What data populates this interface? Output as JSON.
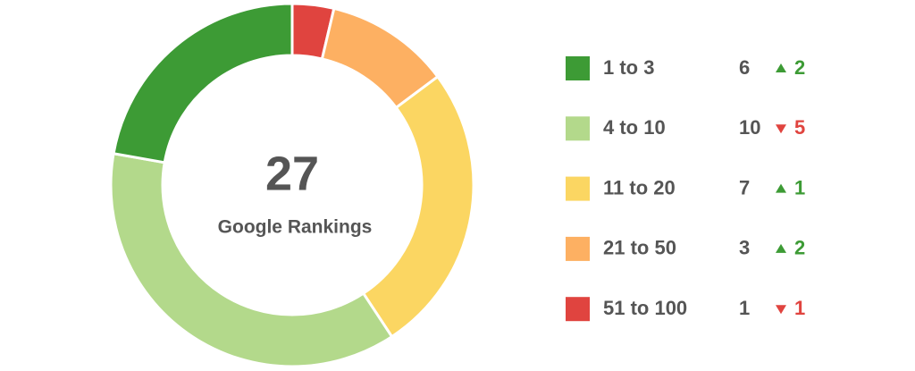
{
  "chart_data": {
    "type": "donut",
    "center_value": 27,
    "center_label": "Google Rankings",
    "categories": [
      "1 to 3",
      "4 to 10",
      "11 to 20",
      "21 to 50",
      "51 to 100"
    ],
    "values": [
      6,
      10,
      7,
      3,
      1
    ],
    "colors": [
      "#3d9b35",
      "#b3d98b",
      "#fbd662",
      "#fdb062",
      "#e0443f"
    ],
    "changes": [
      {
        "value": 2,
        "label": "2"
      },
      {
        "value": -5,
        "label": "5"
      },
      {
        "value": 1,
        "label": "1"
      },
      {
        "value": 2,
        "label": "2"
      },
      {
        "value": -1,
        "label": "1"
      }
    ],
    "up_color": "#3d9b35",
    "down_color": "#e0443f"
  }
}
